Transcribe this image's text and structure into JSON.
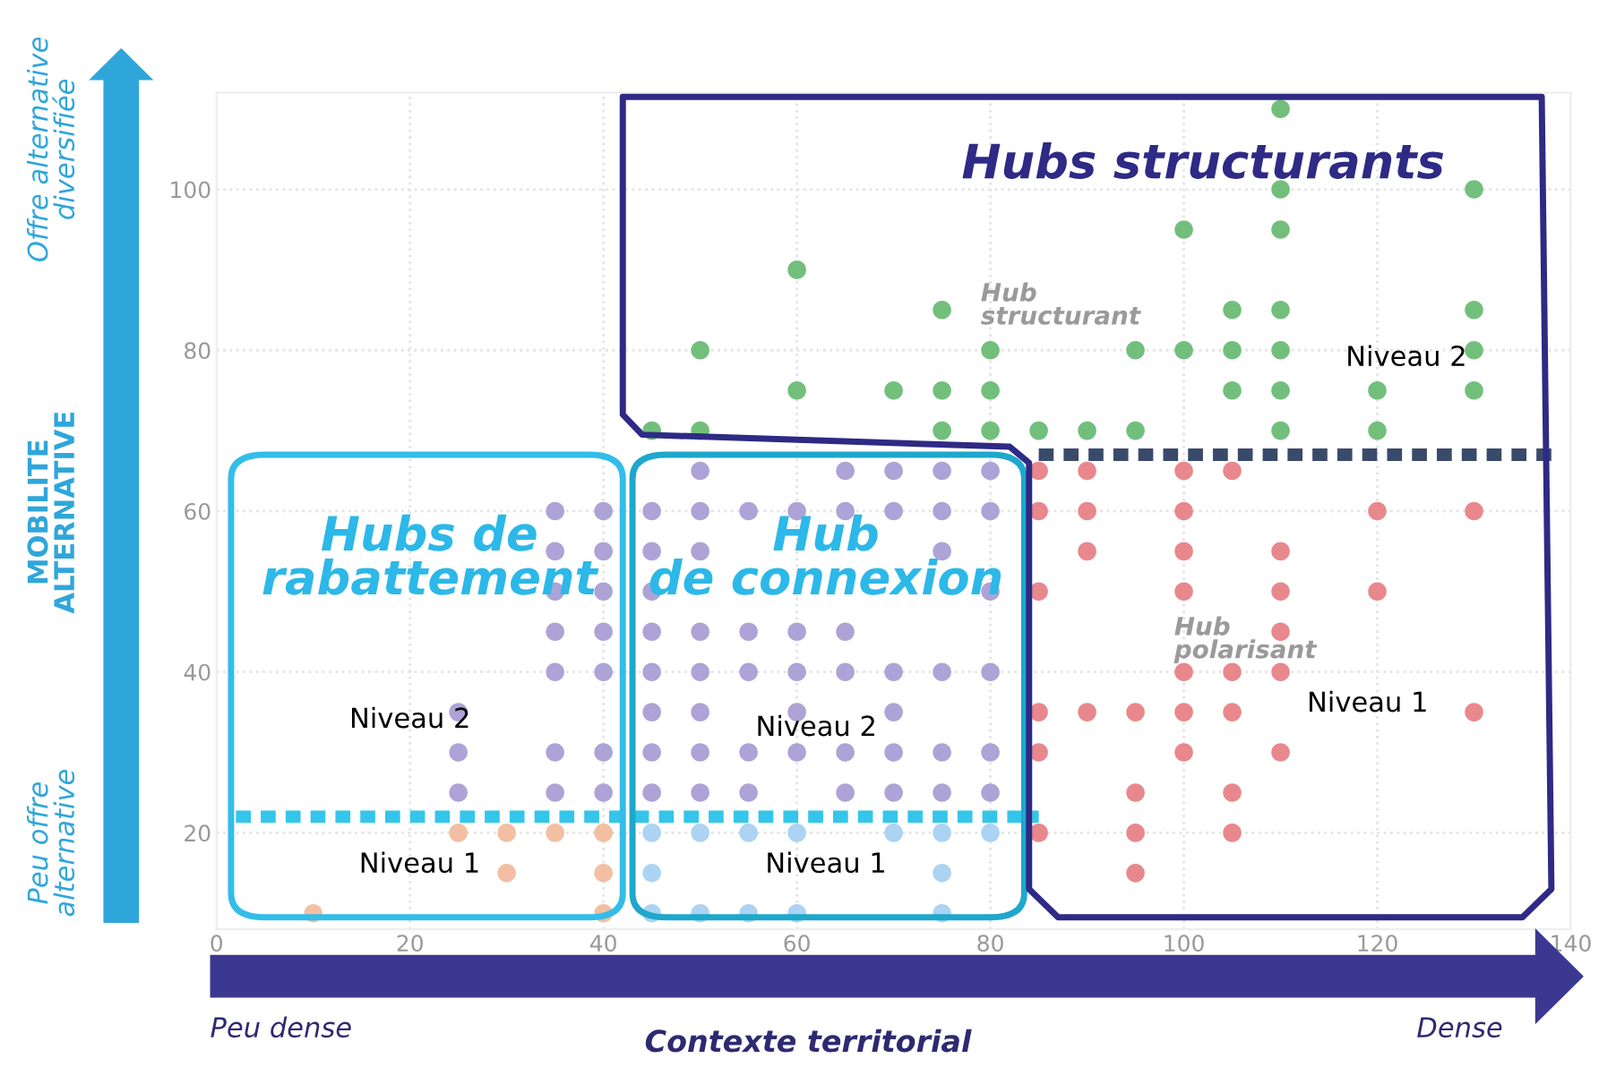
{
  "chart_data": {
    "type": "scatter",
    "xlabel": "Contexte territorial",
    "ylabel": "MOBILITE ALTERNATIVE",
    "xlim": [
      0,
      140
    ],
    "ylim": [
      8,
      112
    ],
    "xticks": [
      0,
      20,
      40,
      60,
      80,
      100,
      120,
      140
    ],
    "yticks": [
      20,
      40,
      60,
      80,
      100
    ],
    "grid": true,
    "series": [
      {
        "color": "#72bf7c",
        "x": [
          110,
          100,
          110,
          110,
          130,
          60,
          75,
          105,
          110,
          130,
          50,
          80,
          95,
          100,
          105,
          110,
          130,
          60,
          70,
          75,
          80,
          105,
          110,
          120,
          130,
          45,
          50,
          75,
          80,
          85,
          90,
          95,
          110,
          120
        ],
        "values": [
          110,
          95,
          95,
          100,
          100,
          90,
          85,
          85,
          85,
          85,
          80,
          80,
          80,
          80,
          80,
          80,
          80,
          75,
          75,
          75,
          75,
          75,
          75,
          75,
          75,
          70,
          70,
          70,
          70,
          70,
          70,
          70,
          70,
          70
        ]
      },
      {
        "color": "#e8888c",
        "x": [
          85,
          90,
          100,
          105,
          85,
          90,
          100,
          120,
          130,
          90,
          100,
          110,
          85,
          100,
          110,
          120,
          110,
          100,
          105,
          110,
          85,
          90,
          95,
          100,
          105,
          130,
          85,
          100,
          110,
          95,
          105,
          85,
          95,
          105,
          95
        ],
        "values": [
          65,
          65,
          65,
          65,
          60,
          60,
          60,
          60,
          60,
          55,
          55,
          55,
          50,
          50,
          50,
          50,
          45,
          40,
          40,
          40,
          35,
          35,
          35,
          35,
          35,
          35,
          30,
          30,
          30,
          25,
          25,
          20,
          20,
          20,
          15
        ]
      },
      {
        "color": "#ada3d6",
        "x": [
          50,
          65,
          70,
          75,
          80,
          35,
          40,
          45,
          50,
          55,
          60,
          65,
          70,
          75,
          80,
          35,
          40,
          45,
          50,
          75,
          35,
          40,
          45,
          80,
          35,
          40,
          45,
          50,
          55,
          60,
          65,
          35,
          40,
          45,
          50,
          55,
          60,
          65,
          70,
          75,
          80,
          25,
          45,
          50,
          60,
          70,
          25,
          35,
          40,
          45,
          50,
          55,
          60,
          65,
          70,
          75,
          80,
          25,
          35,
          40,
          45,
          50,
          55,
          65,
          70,
          75,
          80
        ],
        "values": [
          65,
          65,
          65,
          65,
          65,
          60,
          60,
          60,
          60,
          60,
          60,
          60,
          60,
          60,
          60,
          55,
          55,
          55,
          55,
          55,
          50,
          50,
          50,
          50,
          45,
          45,
          45,
          45,
          45,
          45,
          45,
          40,
          40,
          40,
          40,
          40,
          40,
          40,
          40,
          40,
          40,
          35,
          35,
          35,
          35,
          35,
          30,
          30,
          30,
          30,
          30,
          30,
          30,
          30,
          30,
          30,
          30,
          25,
          25,
          25,
          25,
          25,
          25,
          25,
          25,
          25,
          25
        ]
      },
      {
        "color": "#f2bfa3",
        "x": [
          25,
          30,
          35,
          40,
          30,
          40,
          10,
          40
        ],
        "values": [
          20,
          20,
          20,
          20,
          15,
          15,
          10,
          10
        ]
      },
      {
        "color": "#acd3f2",
        "x": [
          45,
          50,
          55,
          60,
          70,
          75,
          80,
          45,
          75,
          45,
          50,
          55,
          60,
          75
        ],
        "values": [
          20,
          20,
          20,
          20,
          20,
          20,
          20,
          15,
          15,
          10,
          10,
          10,
          10,
          10
        ]
      },
      {
        "type": "line",
        "color": "#33c6ea",
        "line_style": "dotted",
        "x": [
          2,
          85
        ],
        "values": [
          22,
          22
        ]
      },
      {
        "type": "line",
        "color": "#3a4a6a",
        "line_style": "dotted",
        "x": [
          85,
          138
        ],
        "values": [
          67,
          67
        ]
      }
    ],
    "annotations": [
      "Hubs structurants",
      "Hubs de rabattement",
      "Hub de connexion",
      "Niveau 2",
      "Niveau 2",
      "Niveau 2",
      "Niveau 1",
      "Niveau 1",
      "Niveau 1",
      "Hub structurant",
      "Hub polarisant",
      "Offre alternative diversifiée",
      "Peu offre alternative",
      "Peu dense",
      "Dense"
    ]
  }
}
